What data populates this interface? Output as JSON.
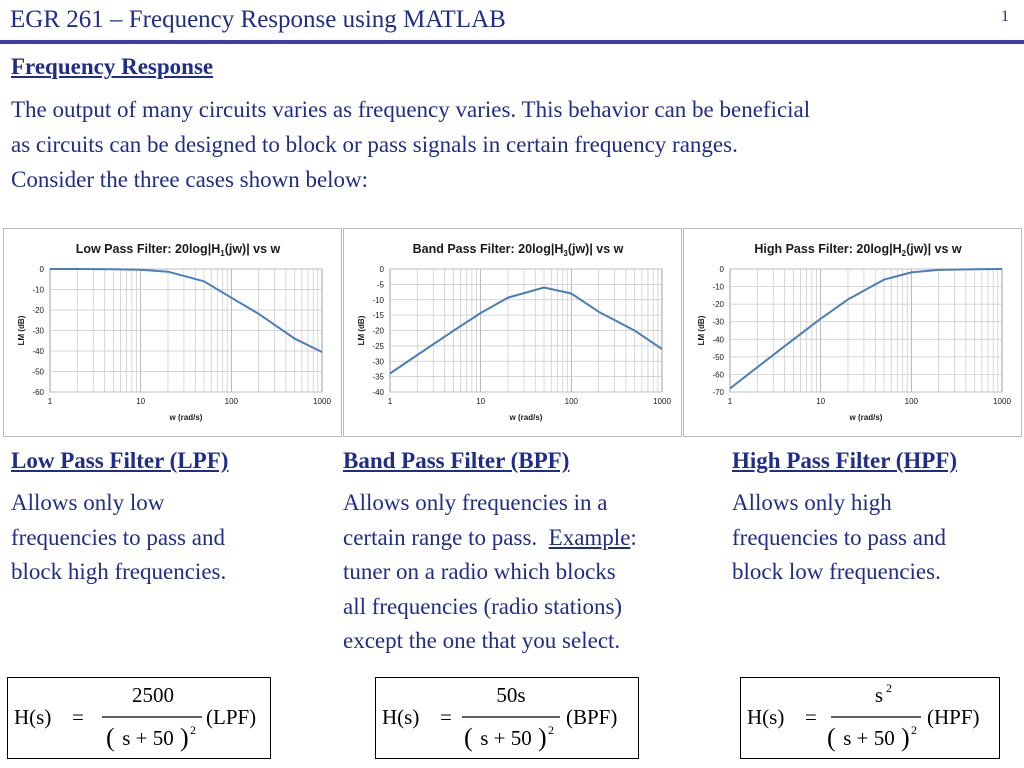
{
  "header": {
    "title": "EGR 261 – Frequency Response using MATLAB",
    "page_number": "1"
  },
  "section": {
    "heading": "Frequency Response"
  },
  "intro": {
    "lines": [
      "The output of many circuits varies as frequency varies.  This behavior can be beneficial",
      "as circuits can be designed to block or pass signals in certain frequency ranges.",
      "Consider the three cases shown below:"
    ]
  },
  "columns": [
    {
      "title": "Low Pass Filter (LPF)",
      "desc_lines": [
        "Allows only low",
        "frequencies to pass and",
        "block high frequencies."
      ],
      "formula": {
        "lhs": "H(s)",
        "eq": "=",
        "numerator": "2500",
        "den_base": "s + 50",
        "den_exp": "2",
        "tag": "(LPF)"
      }
    },
    {
      "title": "Band Pass Filter (BPF)",
      "desc_lines": [
        "Allows only  frequencies in a",
        "certain range to pass.  ",
        "tuner on a radio which blocks",
        "all frequencies (radio stations)",
        "except the one that you select."
      ],
      "desc_example_word": "Example",
      "desc_example_colon": ":",
      "formula": {
        "lhs": "H(s)",
        "eq": "=",
        "numerator": "50s",
        "den_base": "s + 50",
        "den_exp": "2",
        "tag": "(BPF)"
      }
    },
    {
      "title": "High Pass Filter (HPF)",
      "desc_lines": [
        "Allows only high",
        "frequencies to pass and",
        "block low frequencies."
      ],
      "formula": {
        "lhs": "H(s)",
        "eq": "=",
        "numerator": "s",
        "num_exp": "2",
        "den_base": "s + 50",
        "den_exp": "2",
        "tag": "(HPF)"
      }
    }
  ],
  "chart_data": [
    {
      "type": "line",
      "title_parts": [
        "Low Pass Filter:  20log|H",
        "1",
        "(jw)|  vs w"
      ],
      "xlabel": "w (rad/s)",
      "ylabel": "LM (dB)",
      "xscale": "log",
      "xlim": [
        1,
        1000
      ],
      "ylim": [
        -60,
        0
      ],
      "xticks": [
        "1",
        "10",
        "100",
        "1000"
      ],
      "yticks": [
        "0",
        "-10",
        "-20",
        "-30",
        "-40",
        "-50",
        "-60"
      ],
      "grid": true,
      "color": "#4a7ebb",
      "series": [
        {
          "x": [
            1,
            2,
            5,
            10,
            20,
            50,
            100,
            200,
            500,
            1000
          ],
          "values": [
            0,
            -0.01,
            -0.09,
            -0.34,
            -1.3,
            -6.0,
            -13.98,
            -21.86,
            -34.02,
            -40.48
          ]
        }
      ]
    },
    {
      "type": "line",
      "title_parts": [
        "Band Pass Filter:  20log|H",
        "3",
        "(jw)|  vs w"
      ],
      "xlabel": "w (rad/s)",
      "ylabel": "LM (dB)",
      "xscale": "log",
      "xlim": [
        1,
        1000
      ],
      "ylim": [
        -40,
        0
      ],
      "xticks": [
        "1",
        "10",
        "100",
        "1000"
      ],
      "yticks": [
        "0",
        "-5",
        "-10",
        "-15",
        "-20",
        "-25",
        "-30",
        "-35",
        "-40"
      ],
      "grid": true,
      "color": "#4a7ebb",
      "series": [
        {
          "x": [
            1,
            2,
            5,
            10,
            20,
            50,
            100,
            200,
            500,
            1000
          ],
          "values": [
            -33.98,
            -27.96,
            -20.09,
            -14.32,
            -9.3,
            -6.02,
            -7.96,
            -13.88,
            -20.04,
            -26.06
          ]
        }
      ]
    },
    {
      "type": "line",
      "title_parts": [
        "High Pass Filter:  20log|H",
        "2",
        "(jw)|  vs w"
      ],
      "xlabel": "w (rad/s)",
      "ylabel": "LM (dB)",
      "xscale": "log",
      "xlim": [
        1,
        1000
      ],
      "ylim": [
        -70,
        0
      ],
      "xticks": [
        "1",
        "10",
        "100",
        "1000"
      ],
      "yticks": [
        "0",
        "-10",
        "-20",
        "-30",
        "-40",
        "-50",
        "-60",
        "-70"
      ],
      "grid": true,
      "color": "#4a7ebb",
      "series": [
        {
          "x": [
            1,
            2,
            5,
            10,
            20,
            50,
            100,
            200,
            500,
            1000
          ],
          "values": [
            -67.96,
            -55.92,
            -40.09,
            -28.3,
            -17.3,
            -6.02,
            -1.94,
            -0.5,
            -0.09,
            -0.02
          ]
        }
      ]
    }
  ]
}
